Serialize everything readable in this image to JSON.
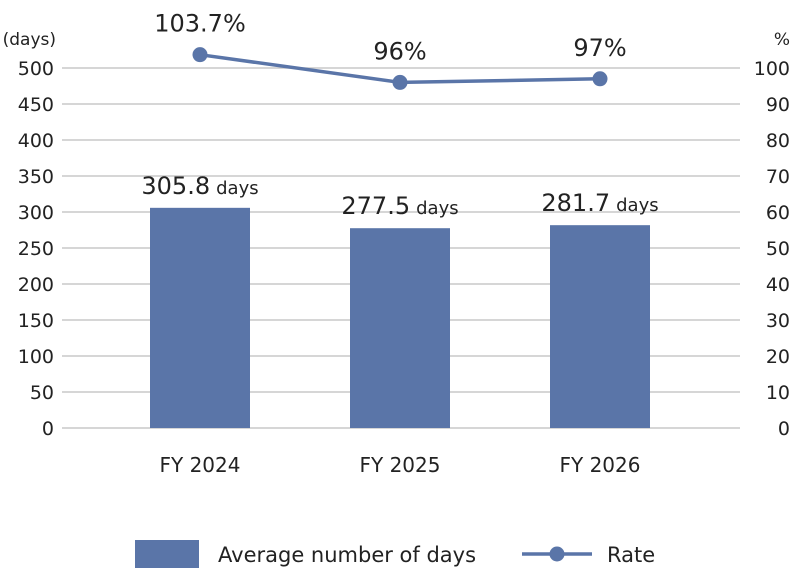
{
  "chart_data": {
    "type": "bar",
    "categories": [
      "FY 2024",
      "FY 2025",
      "FY 2026"
    ],
    "left_axis": {
      "unit_label": "(days)",
      "ylim": [
        0,
        500
      ],
      "ticks": [
        0,
        50,
        100,
        150,
        200,
        250,
        300,
        350,
        400,
        450,
        500
      ]
    },
    "right_axis": {
      "unit_label": "%",
      "ylim": [
        0,
        100
      ],
      "ticks": [
        0,
        10,
        20,
        30,
        40,
        50,
        60,
        70,
        80,
        90,
        100
      ]
    },
    "grid": true,
    "series": [
      {
        "name": "Average number of days",
        "type": "bar",
        "axis": "left",
        "color": "#5a75a8",
        "values": [
          305.8,
          277.5,
          281.7
        ],
        "labels": [
          "305.8",
          "277.5",
          "281.7"
        ],
        "label_unit": "days"
      },
      {
        "name": "Rate",
        "type": "line",
        "axis": "right",
        "color": "#5a75a8",
        "values": [
          103.7,
          96,
          97
        ],
        "labels": [
          "103.7%",
          "96%",
          "97%"
        ]
      }
    ],
    "legend": {
      "placement": "bottom",
      "items": [
        {
          "label": "Average number of days",
          "shape": "bar"
        },
        {
          "label": "Rate",
          "shape": "line-marker"
        }
      ]
    }
  }
}
